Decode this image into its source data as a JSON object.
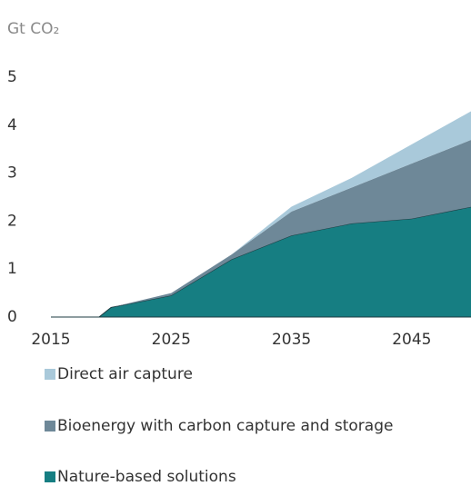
{
  "chart_data": {
    "type": "stacked_area",
    "ylabel": "Gt CO₂",
    "x": [
      2015,
      2019,
      2020,
      2025,
      2030,
      2035,
      2040,
      2045,
      2050
    ],
    "xlim": [
      2015,
      2050
    ],
    "xticks": [
      2015,
      2025,
      2035,
      2045
    ],
    "ylim": [
      0,
      5
    ],
    "yticks": [
      0,
      1,
      2,
      3,
      4,
      5
    ],
    "grid": false,
    "series": [
      {
        "name": "Nature-based solutions",
        "color": "#167e82",
        "values": [
          0,
          0,
          0.2,
          0.45,
          1.2,
          1.7,
          1.95,
          2.05,
          2.3
        ]
      },
      {
        "name": "Bioenergy with carbon capture and storage",
        "color": "#6e8898",
        "values": [
          0,
          0,
          0,
          0.05,
          0.1,
          0.5,
          0.75,
          1.15,
          1.4
        ]
      },
      {
        "name": "Direct air capture",
        "color": "#a9c9da",
        "values": [
          0,
          0,
          0,
          0,
          0,
          0.1,
          0.2,
          0.4,
          0.6
        ]
      }
    ]
  }
}
